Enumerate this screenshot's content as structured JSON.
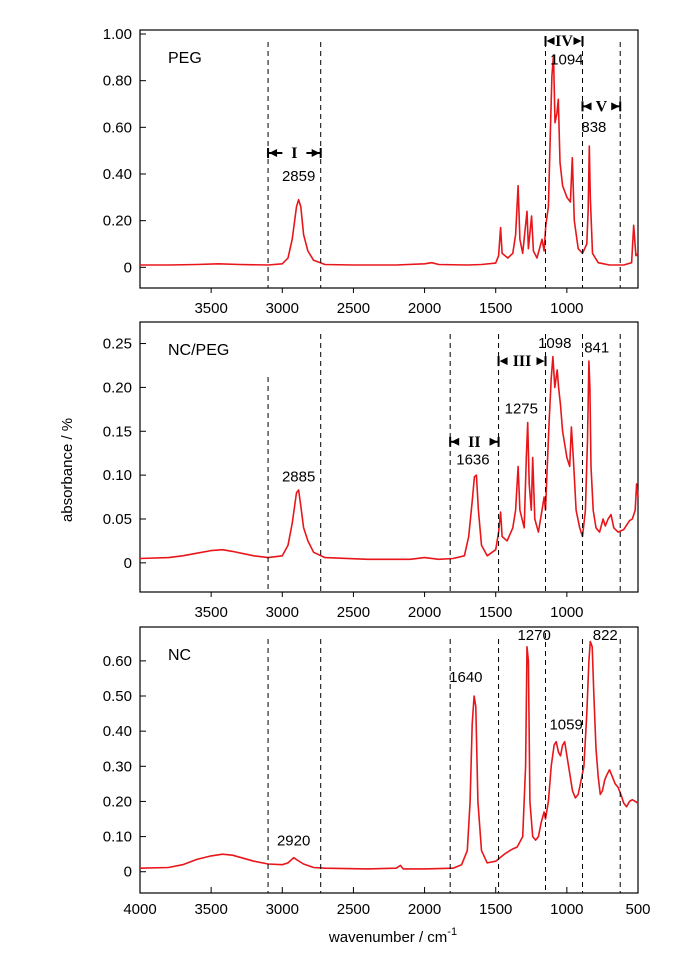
{
  "colors": {
    "spectrum": "#e8161b",
    "axis": "#000000",
    "guide": "#000000"
  },
  "chart_data": {
    "type": "line",
    "xlabel": "wavenumber / cm",
    "xlabel_sup": "-1",
    "ylabel": "absorbance / %",
    "xlim": [
      4000,
      500
    ],
    "x_reversed": true,
    "shared_x_ticks": [
      "4000",
      "3500",
      "3000",
      "2500",
      "2000",
      "1500",
      "1000",
      "500"
    ],
    "inner_x_ticks": [
      "3500",
      "3000",
      "2500",
      "2000",
      "1500",
      "1000"
    ],
    "guide_lines_cm1": [
      3100,
      2730,
      1820,
      1480,
      1150,
      890,
      625
    ],
    "panels": [
      {
        "name": "PEG",
        "ylim": [
          -0.02,
          1.0
        ],
        "y_ticks": [
          "1.00",
          "0.80",
          "0.60",
          "0.40",
          "0.20",
          "0"
        ],
        "y_tick_values": [
          1.0,
          0.8,
          0.6,
          0.4,
          0.2,
          0.0
        ],
        "guides": [
          3100,
          2730,
          1150,
          890,
          625
        ],
        "peak_labels": [
          {
            "text": "2859",
            "x": 2885,
            "y": 0.37
          },
          {
            "text": "1094",
            "x": 1000,
            "y": 0.87
          },
          {
            "text": "838",
            "x": 810,
            "y": 0.58
          }
        ],
        "regions": [
          {
            "label": "I",
            "x1": 3100,
            "x2": 2730,
            "y": 0.49
          },
          {
            "label": "IV",
            "x1": 1150,
            "x2": 890,
            "y": 0.97
          },
          {
            "label": "V",
            "x1": 890,
            "x2": 625,
            "y": 0.69
          }
        ],
        "spectrum": [
          [
            4000,
            0.01
          ],
          [
            3800,
            0.01
          ],
          [
            3600,
            0.012
          ],
          [
            3450,
            0.015
          ],
          [
            3300,
            0.012
          ],
          [
            3100,
            0.01
          ],
          [
            3000,
            0.015
          ],
          [
            2960,
            0.04
          ],
          [
            2930,
            0.12
          ],
          [
            2900,
            0.26
          ],
          [
            2885,
            0.29
          ],
          [
            2870,
            0.26
          ],
          [
            2850,
            0.14
          ],
          [
            2820,
            0.07
          ],
          [
            2780,
            0.03
          ],
          [
            2700,
            0.012
          ],
          [
            2500,
            0.01
          ],
          [
            2200,
            0.01
          ],
          [
            2000,
            0.015
          ],
          [
            1950,
            0.02
          ],
          [
            1900,
            0.012
          ],
          [
            1700,
            0.01
          ],
          [
            1600,
            0.012
          ],
          [
            1500,
            0.018
          ],
          [
            1480,
            0.05
          ],
          [
            1466,
            0.17
          ],
          [
            1455,
            0.06
          ],
          [
            1415,
            0.04
          ],
          [
            1380,
            0.06
          ],
          [
            1360,
            0.14
          ],
          [
            1343,
            0.35
          ],
          [
            1330,
            0.12
          ],
          [
            1310,
            0.06
          ],
          [
            1280,
            0.24
          ],
          [
            1270,
            0.08
          ],
          [
            1248,
            0.22
          ],
          [
            1235,
            0.07
          ],
          [
            1210,
            0.04
          ],
          [
            1175,
            0.12
          ],
          [
            1160,
            0.07
          ],
          [
            1148,
            0.18
          ],
          [
            1130,
            0.26
          ],
          [
            1115,
            0.6
          ],
          [
            1105,
            0.82
          ],
          [
            1094,
            0.91
          ],
          [
            1083,
            0.62
          ],
          [
            1070,
            0.66
          ],
          [
            1060,
            0.72
          ],
          [
            1048,
            0.45
          ],
          [
            1030,
            0.35
          ],
          [
            1000,
            0.3
          ],
          [
            975,
            0.28
          ],
          [
            962,
            0.47
          ],
          [
            948,
            0.2
          ],
          [
            920,
            0.08
          ],
          [
            890,
            0.06
          ],
          [
            860,
            0.1
          ],
          [
            850,
            0.25
          ],
          [
            842,
            0.52
          ],
          [
            835,
            0.3
          ],
          [
            820,
            0.06
          ],
          [
            780,
            0.02
          ],
          [
            700,
            0.01
          ],
          [
            600,
            0.01
          ],
          [
            545,
            0.02
          ],
          [
            530,
            0.18
          ],
          [
            515,
            0.05
          ],
          [
            500,
            0.06
          ]
        ]
      },
      {
        "name": "NC/PEG",
        "ylim": [
          -0.015,
          0.27
        ],
        "y_ticks": [
          "0.25",
          "0.20",
          "0.15",
          "0.10",
          "0.05",
          "0"
        ],
        "y_tick_values": [
          0.25,
          0.2,
          0.15,
          0.1,
          0.05,
          0.0
        ],
        "guides": [
          3100,
          2730,
          1820,
          1480,
          1150,
          890,
          625
        ],
        "peak_labels": [
          {
            "text": "2885",
            "x": 2885,
            "y": 0.093
          },
          {
            "text": "1636",
            "x": 1660,
            "y": 0.112
          },
          {
            "text": "1275",
            "x": 1320,
            "y": 0.17
          },
          {
            "text": "1098",
            "x": 1085,
            "y": 0.245
          },
          {
            "text": "841",
            "x": 790,
            "y": 0.24
          }
        ],
        "regions": [
          {
            "label": "II",
            "x1": 1820,
            "x2": 1480,
            "y": 0.138
          },
          {
            "label": "III",
            "x1": 1480,
            "x2": 1150,
            "y": 0.23
          }
        ],
        "spectrum": [
          [
            4000,
            0.005
          ],
          [
            3800,
            0.006
          ],
          [
            3700,
            0.008
          ],
          [
            3600,
            0.011
          ],
          [
            3500,
            0.014
          ],
          [
            3420,
            0.015
          ],
          [
            3350,
            0.013
          ],
          [
            3200,
            0.008
          ],
          [
            3100,
            0.006
          ],
          [
            3000,
            0.008
          ],
          [
            2960,
            0.02
          ],
          [
            2930,
            0.045
          ],
          [
            2900,
            0.08
          ],
          [
            2885,
            0.083
          ],
          [
            2870,
            0.065
          ],
          [
            2850,
            0.04
          ],
          [
            2820,
            0.025
          ],
          [
            2780,
            0.012
          ],
          [
            2700,
            0.006
          ],
          [
            2400,
            0.004
          ],
          [
            2100,
            0.004
          ],
          [
            2000,
            0.006
          ],
          [
            1900,
            0.004
          ],
          [
            1800,
            0.005
          ],
          [
            1720,
            0.008
          ],
          [
            1690,
            0.03
          ],
          [
            1665,
            0.07
          ],
          [
            1650,
            0.098
          ],
          [
            1636,
            0.1
          ],
          [
            1622,
            0.06
          ],
          [
            1600,
            0.02
          ],
          [
            1560,
            0.008
          ],
          [
            1500,
            0.015
          ],
          [
            1480,
            0.035
          ],
          [
            1466,
            0.058
          ],
          [
            1455,
            0.03
          ],
          [
            1420,
            0.025
          ],
          [
            1380,
            0.04
          ],
          [
            1360,
            0.06
          ],
          [
            1343,
            0.11
          ],
          [
            1330,
            0.06
          ],
          [
            1300,
            0.04
          ],
          [
            1285,
            0.12
          ],
          [
            1275,
            0.16
          ],
          [
            1265,
            0.09
          ],
          [
            1250,
            0.06
          ],
          [
            1240,
            0.12
          ],
          [
            1225,
            0.05
          ],
          [
            1200,
            0.035
          ],
          [
            1175,
            0.06
          ],
          [
            1160,
            0.075
          ],
          [
            1150,
            0.06
          ],
          [
            1140,
            0.1
          ],
          [
            1125,
            0.16
          ],
          [
            1110,
            0.21
          ],
          [
            1098,
            0.235
          ],
          [
            1085,
            0.2
          ],
          [
            1068,
            0.22
          ],
          [
            1058,
            0.2
          ],
          [
            1045,
            0.18
          ],
          [
            1030,
            0.15
          ],
          [
            1000,
            0.12
          ],
          [
            980,
            0.11
          ],
          [
            968,
            0.155
          ],
          [
            955,
            0.12
          ],
          [
            935,
            0.06
          ],
          [
            910,
            0.04
          ],
          [
            890,
            0.03
          ],
          [
            870,
            0.06
          ],
          [
            855,
            0.14
          ],
          [
            845,
            0.23
          ],
          [
            838,
            0.2
          ],
          [
            830,
            0.11
          ],
          [
            815,
            0.06
          ],
          [
            795,
            0.04
          ],
          [
            770,
            0.035
          ],
          [
            745,
            0.05
          ],
          [
            730,
            0.042
          ],
          [
            710,
            0.05
          ],
          [
            690,
            0.055
          ],
          [
            670,
            0.04
          ],
          [
            640,
            0.035
          ],
          [
            600,
            0.038
          ],
          [
            560,
            0.048
          ],
          [
            540,
            0.05
          ],
          [
            520,
            0.06
          ],
          [
            510,
            0.09
          ],
          [
            500,
            0.075
          ]
        ]
      },
      {
        "name": "NC",
        "ylim": [
          -0.015,
          0.685
        ],
        "y_ticks": [
          "0.60",
          "0.50",
          "0.40",
          "0.30",
          "0.20",
          "0.10",
          "0"
        ],
        "y_tick_values": [
          0.6,
          0.5,
          0.4,
          0.3,
          0.2,
          0.1,
          0.0
        ],
        "guides": [
          3100,
          2730,
          1820,
          1480,
          1150,
          890,
          625
        ],
        "peak_labels": [
          {
            "text": "2920",
            "x": 2920,
            "y": 0.075
          },
          {
            "text": "1640",
            "x": 1710,
            "y": 0.54
          },
          {
            "text": "1270",
            "x": 1230,
            "y": 0.66
          },
          {
            "text": "1059",
            "x": 1005,
            "y": 0.405
          },
          {
            "text": "822",
            "x": 730,
            "y": 0.66
          }
        ],
        "regions": [],
        "spectrum": [
          [
            4000,
            0.01
          ],
          [
            3800,
            0.012
          ],
          [
            3700,
            0.02
          ],
          [
            3600,
            0.035
          ],
          [
            3500,
            0.045
          ],
          [
            3420,
            0.05
          ],
          [
            3350,
            0.047
          ],
          [
            3200,
            0.03
          ],
          [
            3100,
            0.022
          ],
          [
            3000,
            0.02
          ],
          [
            2960,
            0.025
          ],
          [
            2920,
            0.04
          ],
          [
            2890,
            0.032
          ],
          [
            2850,
            0.022
          ],
          [
            2780,
            0.012
          ],
          [
            2700,
            0.01
          ],
          [
            2400,
            0.008
          ],
          [
            2200,
            0.01
          ],
          [
            2170,
            0.018
          ],
          [
            2150,
            0.008
          ],
          [
            2000,
            0.008
          ],
          [
            1900,
            0.009
          ],
          [
            1800,
            0.01
          ],
          [
            1740,
            0.02
          ],
          [
            1700,
            0.06
          ],
          [
            1680,
            0.2
          ],
          [
            1665,
            0.42
          ],
          [
            1652,
            0.5
          ],
          [
            1640,
            0.47
          ],
          [
            1625,
            0.2
          ],
          [
            1600,
            0.06
          ],
          [
            1560,
            0.025
          ],
          [
            1500,
            0.03
          ],
          [
            1470,
            0.04
          ],
          [
            1440,
            0.05
          ],
          [
            1400,
            0.06
          ],
          [
            1380,
            0.065
          ],
          [
            1350,
            0.07
          ],
          [
            1310,
            0.1
          ],
          [
            1290,
            0.3
          ],
          [
            1280,
            0.64
          ],
          [
            1270,
            0.6
          ],
          [
            1260,
            0.2
          ],
          [
            1240,
            0.1
          ],
          [
            1220,
            0.09
          ],
          [
            1200,
            0.1
          ],
          [
            1180,
            0.14
          ],
          [
            1160,
            0.17
          ],
          [
            1150,
            0.15
          ],
          [
            1130,
            0.2
          ],
          [
            1110,
            0.3
          ],
          [
            1090,
            0.36
          ],
          [
            1075,
            0.37
          ],
          [
            1059,
            0.34
          ],
          [
            1045,
            0.33
          ],
          [
            1030,
            0.36
          ],
          [
            1015,
            0.37
          ],
          [
            1000,
            0.33
          ],
          [
            980,
            0.28
          ],
          [
            960,
            0.23
          ],
          [
            940,
            0.21
          ],
          [
            920,
            0.22
          ],
          [
            900,
            0.26
          ],
          [
            880,
            0.3
          ],
          [
            860,
            0.45
          ],
          [
            845,
            0.6
          ],
          [
            835,
            0.655
          ],
          [
            822,
            0.64
          ],
          [
            810,
            0.5
          ],
          [
            795,
            0.35
          ],
          [
            780,
            0.27
          ],
          [
            765,
            0.22
          ],
          [
            750,
            0.23
          ],
          [
            735,
            0.26
          ],
          [
            720,
            0.275
          ],
          [
            700,
            0.29
          ],
          [
            680,
            0.27
          ],
          [
            660,
            0.25
          ],
          [
            640,
            0.24
          ],
          [
            620,
            0.22
          ],
          [
            600,
            0.195
          ],
          [
            580,
            0.185
          ],
          [
            560,
            0.2
          ],
          [
            540,
            0.205
          ],
          [
            520,
            0.2
          ],
          [
            500,
            0.195
          ]
        ]
      }
    ]
  }
}
